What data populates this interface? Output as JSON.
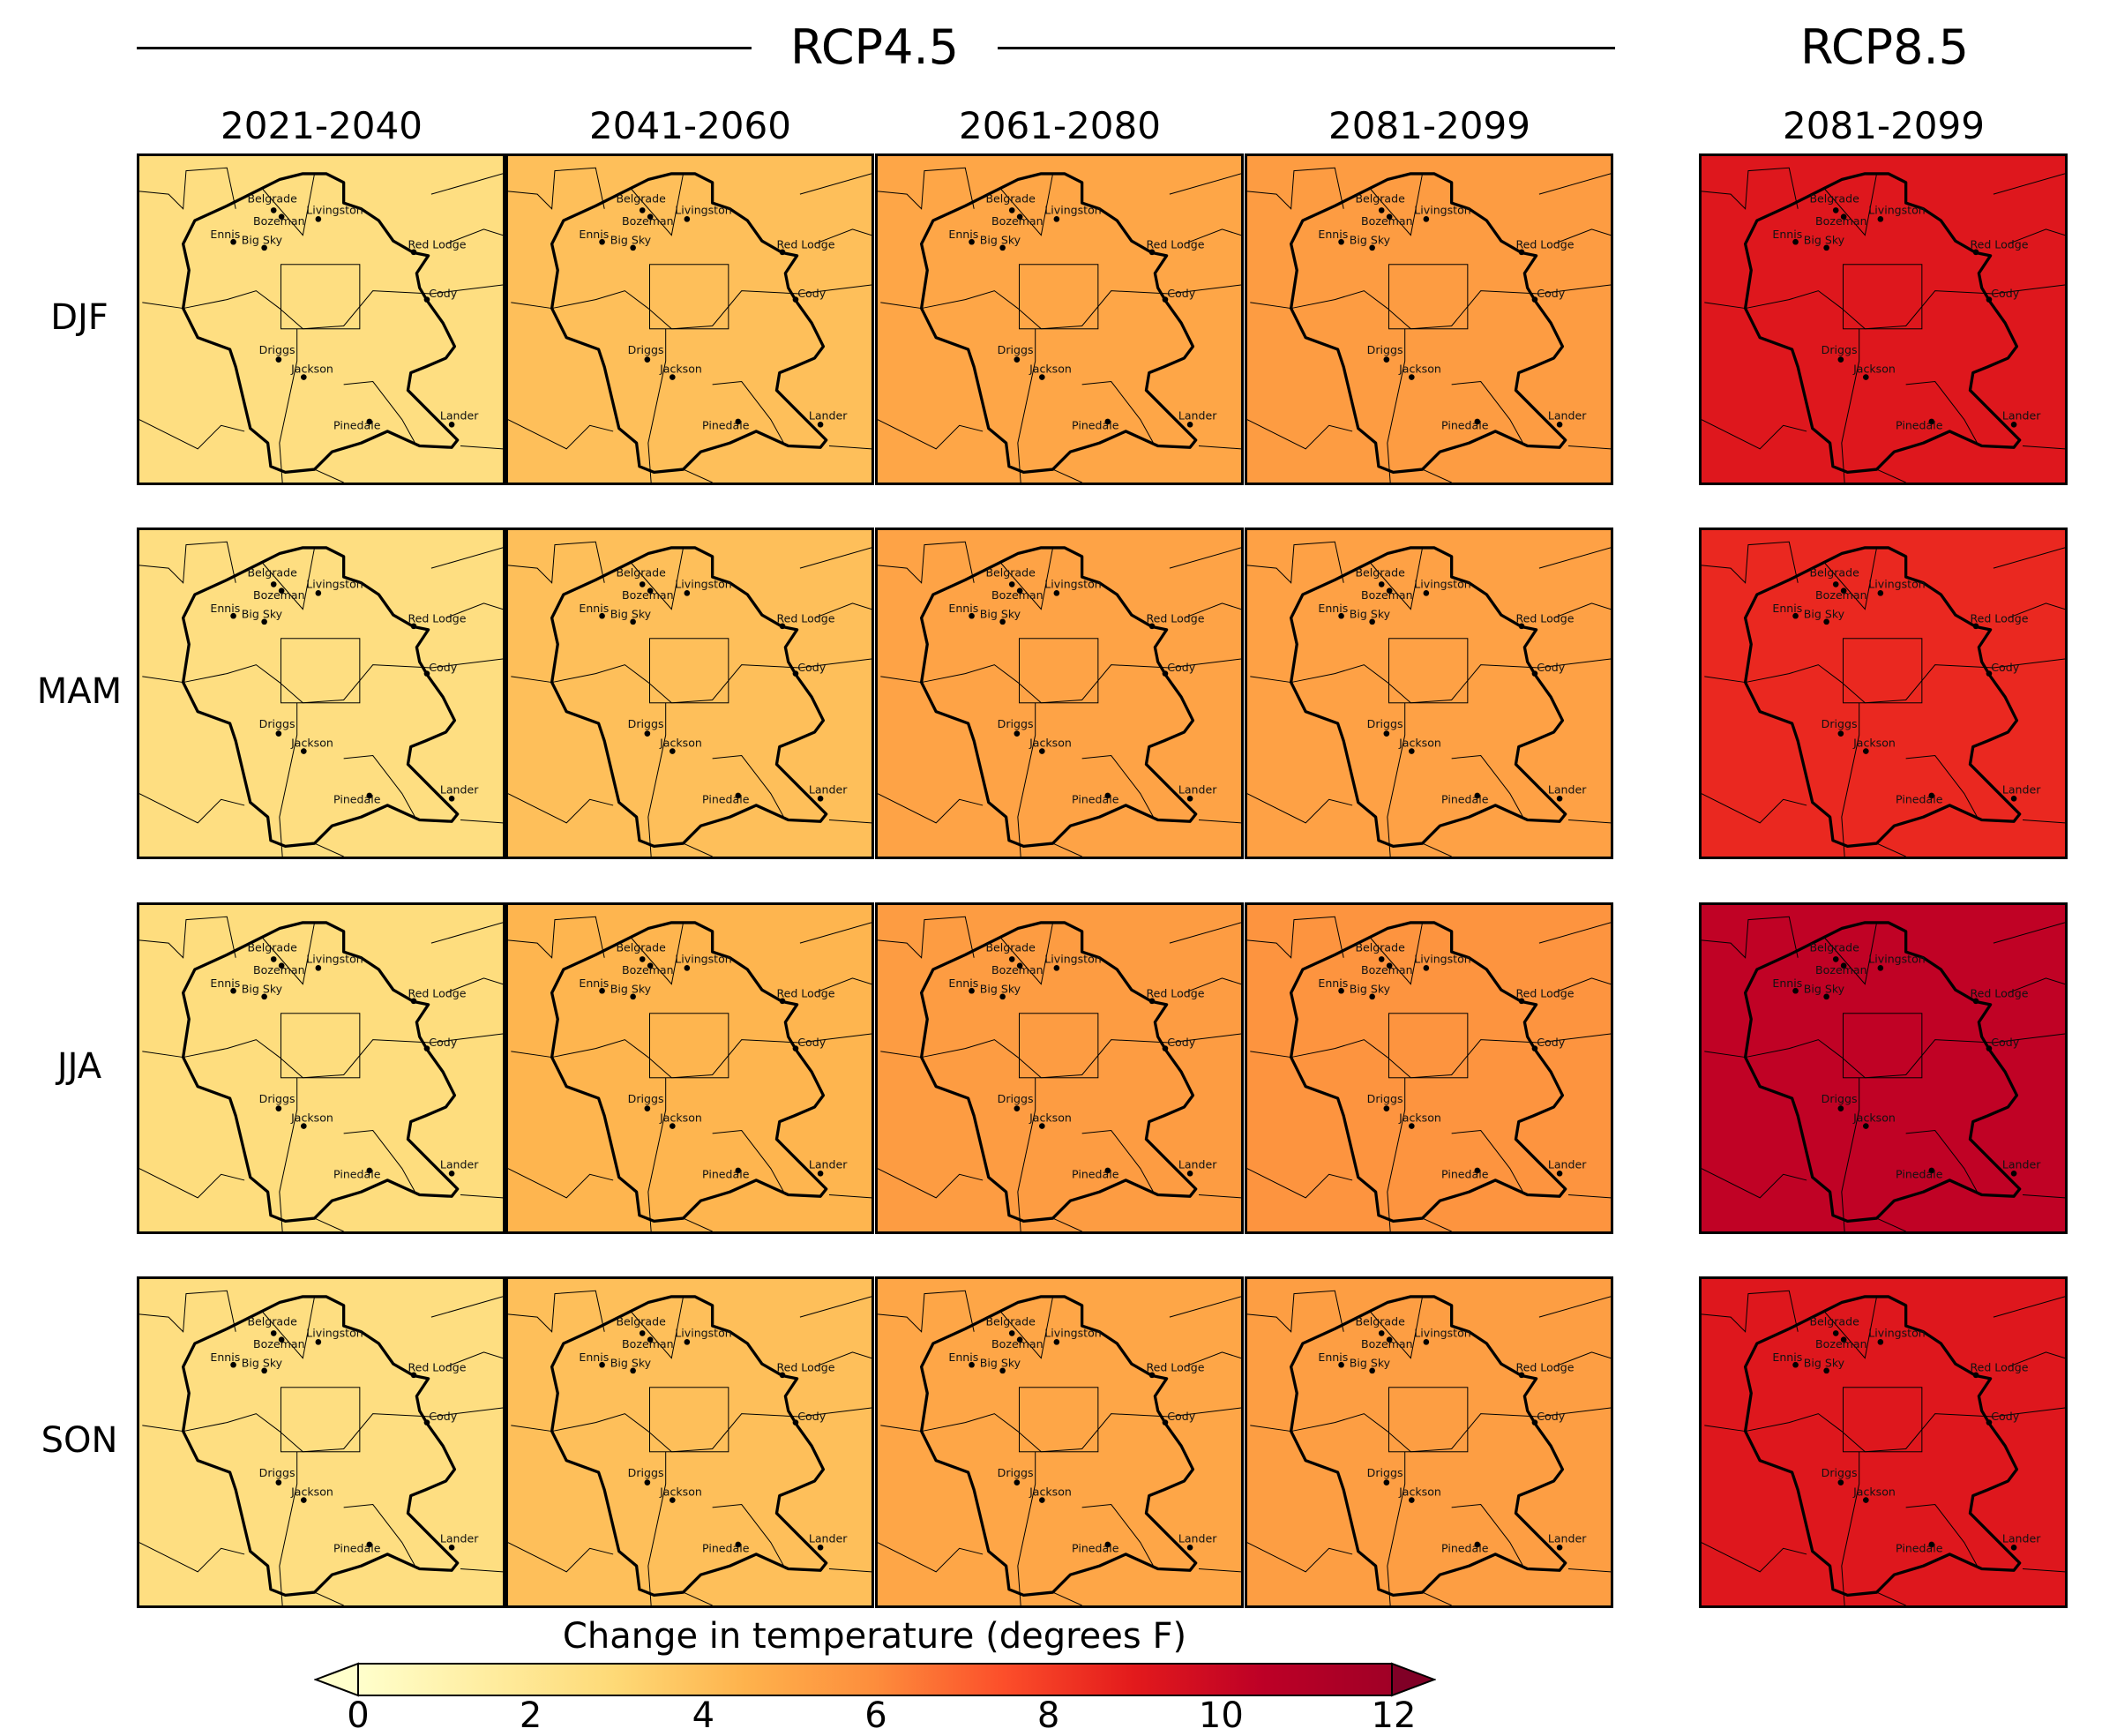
{
  "header": {
    "rcp45": "RCP4.5",
    "rcp85": "RCP8.5"
  },
  "columns": [
    "2021-2040",
    "2041-2060",
    "2061-2080",
    "2081-2099",
    "2081-2099"
  ],
  "rows": [
    "DJF",
    "MAM",
    "JJA",
    "SON"
  ],
  "cities": [
    "Belgrade",
    "Bozeman",
    "Livingston",
    "Ennis",
    "Big Sky",
    "Red Lodge",
    "Cody",
    "Driggs",
    "Jackson",
    "Pinedale",
    "Lander"
  ],
  "chart_data": {
    "type": "heatmap",
    "title": "",
    "colorbar_label": "Change in temperature (degrees F)",
    "colormap": "YlOrRd",
    "colorbar_range": [
      0,
      12
    ],
    "colorbar_ticks": [
      "0",
      "2",
      "4",
      "6",
      "8",
      "10",
      "12"
    ],
    "colorbar_extend": "both",
    "scenarios": [
      "RCP4.5",
      "RCP4.5",
      "RCP4.5",
      "RCP4.5",
      "RCP8.5"
    ],
    "periods": [
      "2021-2040",
      "2041-2060",
      "2061-2080",
      "2081-2099",
      "2081-2099"
    ],
    "seasons": [
      "DJF",
      "MAM",
      "JJA",
      "SON"
    ],
    "values_approx": [
      [
        2.6,
        4.0,
        5.0,
        5.4,
        9.2
      ],
      [
        2.6,
        4.0,
        5.1,
        5.2,
        8.6
      ],
      [
        2.7,
        4.4,
        5.4,
        5.7,
        10.4
      ],
      [
        2.6,
        4.0,
        5.0,
        5.3,
        9.2
      ]
    ]
  }
}
